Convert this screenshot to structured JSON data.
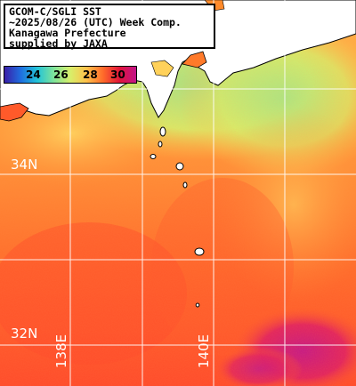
{
  "title": {
    "line1": "GCOM-C/SGLI SST",
    "line2": "~2025/08/26 (UTC) Week Comp.",
    "line3": "Kanagawa Prefecture",
    "line4": "supplied by JAXA"
  },
  "colorbar": {
    "ticks": [
      "24",
      "26",
      "28",
      "30"
    ],
    "stops": [
      "#3a1fa8",
      "#1f6fe0",
      "#23c4d8",
      "#7fe39a",
      "#d8ef6a",
      "#ffc04a",
      "#ff6a2a",
      "#e0143a",
      "#c2148a"
    ]
  },
  "grid": {
    "lat_labels": [
      "34N",
      "32N"
    ],
    "lon_labels": [
      "138E",
      "140E"
    ]
  },
  "colors": {
    "land": "#ffffff",
    "coast": "#000000",
    "grid": "#ffffff",
    "warm_sea": "#ff6d2e",
    "cool_sea": "#b6f07a"
  }
}
